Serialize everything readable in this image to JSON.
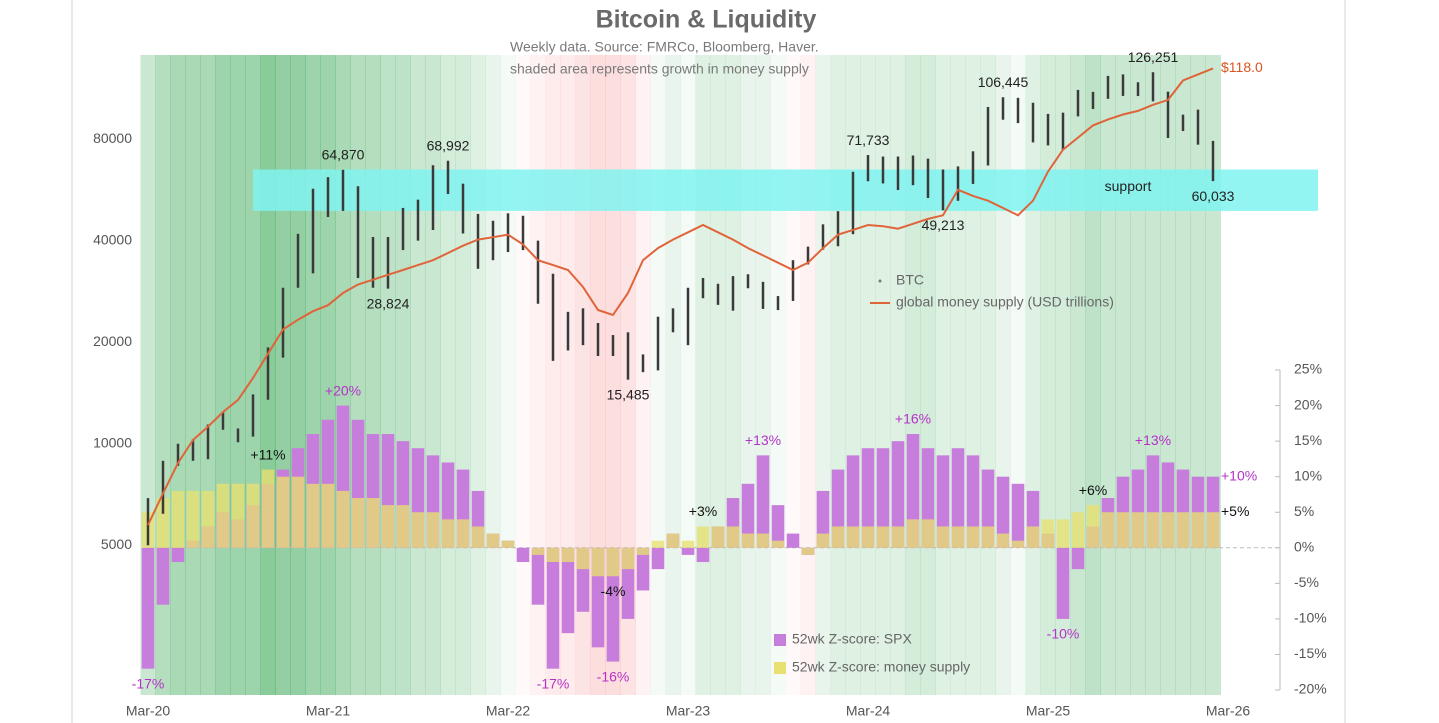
{
  "chart_data": {
    "type": "combo",
    "title": "Bitcoin & Liquidity",
    "subtitle": [
      "Weekly data.  Source: FMRCo, Bloomberg, Haver.",
      "shaded area represents growth in money supply"
    ],
    "x": [
      "2020-03",
      "2020-04",
      "2020-05",
      "2020-06",
      "2020-07",
      "2020-08",
      "2020-09",
      "2020-10",
      "2020-11",
      "2020-12",
      "2021-01",
      "2021-02",
      "2021-03",
      "2021-04",
      "2021-05",
      "2021-06",
      "2021-07",
      "2021-08",
      "2021-09",
      "2021-10",
      "2021-11",
      "2021-12",
      "2022-01",
      "2022-02",
      "2022-03",
      "2022-04",
      "2022-05",
      "2022-06",
      "2022-07",
      "2022-08",
      "2022-09",
      "2022-10",
      "2022-11",
      "2022-12",
      "2023-01",
      "2023-02",
      "2023-03",
      "2023-04",
      "2023-05",
      "2023-06",
      "2023-07",
      "2023-08",
      "2023-09",
      "2023-10",
      "2023-11",
      "2023-12",
      "2024-01",
      "2024-02",
      "2024-03",
      "2024-04",
      "2024-05",
      "2024-06",
      "2024-07",
      "2024-08",
      "2024-09",
      "2024-10",
      "2024-11",
      "2024-12",
      "2025-01",
      "2025-02",
      "2025-03",
      "2025-04",
      "2025-05",
      "2025-06",
      "2025-07",
      "2025-08",
      "2025-09",
      "2025-10",
      "2025-11",
      "2025-12",
      "2026-01",
      "2026-02"
    ],
    "xlim": [
      "2020-03",
      "2026-03"
    ],
    "xticks": [
      {
        "value": "2020-03",
        "label": "Mar-20"
      },
      {
        "value": "2021-03",
        "label": "Mar-21"
      },
      {
        "value": "2022-03",
        "label": "Mar-22"
      },
      {
        "value": "2023-03",
        "label": "Mar-23"
      },
      {
        "value": "2024-03",
        "label": "Mar-24"
      },
      {
        "value": "2025-03",
        "label": "Mar-25"
      },
      {
        "value": "2026-03",
        "label": "Mar-26"
      }
    ],
    "yscale": "log",
    "ylim": [
      1800,
      142000
    ],
    "yticks": [
      5000,
      10000,
      20000,
      40000,
      80000
    ],
    "y2lim": [
      -20.7,
      69.3
    ],
    "y2ticks": [
      {
        "value": -20,
        "label": "-20%"
      },
      {
        "value": -15,
        "label": "-15%"
      },
      {
        "value": -10,
        "label": "-10%"
      },
      {
        "value": -5,
        "label": "-5%"
      },
      {
        "value": 0,
        "label": "0%"
      },
      {
        "value": 5,
        "label": "5%"
      },
      {
        "value": 10,
        "label": "10%"
      },
      {
        "value": 15,
        "label": "15%"
      },
      {
        "value": 20,
        "label": "20%"
      },
      {
        "value": 25,
        "label": "25%"
      }
    ],
    "y3lim": [
      66.4,
      119.1
    ],
    "series": [
      {
        "name": "BTC",
        "type": "range",
        "color": "#3a3a3a",
        "low": [
          5000,
          6200,
          8600,
          8900,
          9000,
          11000,
          10100,
          10500,
          13500,
          18000,
          29000,
          32000,
          47000,
          49000,
          31000,
          29000,
          28824,
          37500,
          40000,
          43000,
          55000,
          42000,
          33000,
          35000,
          37000,
          37500,
          26000,
          17600,
          18900,
          19600,
          18200,
          18200,
          15485,
          16300,
          16500,
          21400,
          19600,
          27000,
          25800,
          24800,
          28900,
          25100,
          24900,
          26500,
          34000,
          37600,
          38500,
          41800,
          60000,
          59100,
          56500,
          58400,
          53500,
          49213,
          52500,
          58900,
          66800,
          91300,
          89200,
          78200,
          76600,
          74400,
          93400,
          98200,
          105300,
          107400,
          107300,
          103500,
          80600,
          84500,
          77000,
          60033
        ],
        "high": [
          6900,
          8900,
          10000,
          10300,
          11400,
          12400,
          11100,
          14000,
          19300,
          29000,
          41900,
          57000,
          61700,
          64870,
          58000,
          41000,
          41000,
          50000,
          52900,
          66900,
          68992,
          59000,
          48000,
          45800,
          48200,
          47400,
          40000,
          31900,
          24600,
          25200,
          22800,
          21000,
          21400,
          18400,
          23800,
          25200,
          29000,
          31000,
          29800,
          31400,
          31800,
          30200,
          27400,
          35000,
          38400,
          44700,
          48900,
          64000,
          71733,
          71000,
          71000,
          71500,
          70000,
          65000,
          66400,
          73600,
          99600,
          106445,
          106000,
          102500,
          95000,
          95800,
          111900,
          110400,
          123100,
          124400,
          117900,
          126251,
          110600,
          94500,
          97800,
          79000
        ]
      },
      {
        "name": "global money supply (USD trillions)",
        "type": "line",
        "axis": "y3",
        "color": "#e0643a",
        "values": [
          80.4,
          83,
          85.5,
          87.4,
          88.5,
          89.7,
          90.7,
          92.5,
          94.5,
          96.5,
          97.3,
          98,
          98.5,
          99.5,
          100.2,
          100.6,
          101,
          101.4,
          101.8,
          102.2,
          102.8,
          103.4,
          103.9,
          104.1,
          104.3,
          103.5,
          102.2,
          101.8,
          101.4,
          100,
          98.1,
          97.7,
          99.5,
          102.2,
          103.2,
          103.9,
          104.5,
          105.1,
          104.5,
          103.9,
          103.2,
          102.6,
          102,
          101.4,
          102,
          103.2,
          104.3,
          104.7,
          105.1,
          105,
          104.8,
          105.2,
          105.6,
          105.9,
          108,
          107.5,
          107.1,
          106.5,
          105.9,
          107.1,
          109.5,
          111.3,
          112.3,
          113.3,
          113.8,
          114.2,
          114.5,
          115,
          115.4,
          117,
          117.5,
          118
        ]
      },
      {
        "name": "52wk Z-score: SPX",
        "type": "bar",
        "axis": "y2",
        "color": "#c77ddb",
        "values": [
          -17,
          -8,
          -2,
          1,
          3,
          5,
          4,
          6,
          9,
          11,
          14,
          16,
          18,
          20,
          18,
          16,
          16,
          15,
          14,
          13,
          12,
          11,
          8,
          2,
          1,
          -2,
          -8,
          -17,
          -12,
          -9,
          -14,
          -16,
          -10,
          -6,
          -3,
          2,
          -1,
          -2,
          3,
          7,
          9,
          13,
          6,
          2,
          -1,
          8,
          11,
          13,
          14,
          14,
          15,
          16,
          14,
          13,
          14,
          13,
          11,
          10,
          9,
          8,
          2,
          -10,
          -3,
          3,
          7,
          10,
          11,
          13,
          12,
          11,
          10,
          10
        ]
      },
      {
        "name": "52wk Z-score: money supply",
        "type": "bar",
        "axis": "y2",
        "color": "#e8e070",
        "shade": true,
        "values": [
          5,
          7,
          8,
          8,
          8,
          9,
          9,
          9,
          11,
          10,
          10,
          9,
          9,
          8,
          7,
          7,
          6,
          6,
          5,
          5,
          4,
          4,
          3,
          2,
          1,
          0,
          -1,
          -2,
          -2,
          -3,
          -4,
          -4,
          -3,
          -1,
          1,
          2,
          1,
          3,
          3,
          3,
          2,
          2,
          1,
          0,
          -1,
          2,
          3,
          3,
          3,
          3,
          3,
          4,
          4,
          3,
          3,
          3,
          3,
          2,
          1,
          3,
          4,
          4,
          5,
          6,
          5,
          5,
          5,
          5,
          5,
          5,
          5,
          5
        ]
      }
    ],
    "bands": [
      {
        "label": "support",
        "x": [
          "2020-10",
          "2026-09"
        ],
        "from": 49000,
        "to": 65000,
        "color": "#80f3f0"
      }
    ],
    "annotations": [
      {
        "text": "64,870",
        "x": "2021-04",
        "y": 64870,
        "axis": "y",
        "position": "above",
        "color": "#222222"
      },
      {
        "text": "68,992",
        "x": "2021-11",
        "y": 68992,
        "axis": "y",
        "position": "above",
        "color": "#222222"
      },
      {
        "text": "28,824",
        "x": "2021-07",
        "y": 28824,
        "axis": "y",
        "position": "below",
        "color": "#222222"
      },
      {
        "text": "15,485",
        "x": "2022-11",
        "y": 15485,
        "axis": "y",
        "position": "below",
        "color": "#222222"
      },
      {
        "text": "71,733",
        "x": "2024-03",
        "y": 71733,
        "axis": "y",
        "position": "above",
        "color": "#222222"
      },
      {
        "text": "49,213",
        "x": "2024-08",
        "y": 49213,
        "axis": "y",
        "position": "below",
        "color": "#222222"
      },
      {
        "text": "106,445",
        "x": "2024-12",
        "y": 106445,
        "axis": "y",
        "position": "above",
        "color": "#222222"
      },
      {
        "text": "126,251",
        "x": "2025-10",
        "y": 126251,
        "axis": "y",
        "position": "above",
        "color": "#222222"
      },
      {
        "text": "60,033",
        "x": "2026-02",
        "y": 60033,
        "axis": "y",
        "position": "below",
        "color": "#222222"
      },
      {
        "text": "$118.0",
        "x": "2026-02",
        "y": 118,
        "axis": "y3",
        "position": "right",
        "color": "#d9541e"
      },
      {
        "text": "+20%",
        "x": "2021-04",
        "y": 20,
        "axis": "y2",
        "position": "above",
        "color": "#b533c8"
      },
      {
        "text": "-17%",
        "x": "2020-03",
        "y": -17,
        "axis": "y2",
        "position": "below",
        "color": "#b533c8"
      },
      {
        "text": "-17%",
        "x": "2022-06",
        "y": -17,
        "axis": "y2",
        "position": "below",
        "color": "#b533c8"
      },
      {
        "text": "-16%",
        "x": "2022-10",
        "y": -16,
        "axis": "y2",
        "position": "below",
        "color": "#b533c8"
      },
      {
        "text": "+13%",
        "x": "2023-08",
        "y": 13,
        "axis": "y2",
        "position": "above",
        "color": "#b533c8"
      },
      {
        "text": "+16%",
        "x": "2024-06",
        "y": 16,
        "axis": "y2",
        "position": "above",
        "color": "#b533c8"
      },
      {
        "text": "-10%",
        "x": "2025-04",
        "y": -10,
        "axis": "y2",
        "position": "below",
        "color": "#b533c8"
      },
      {
        "text": "+13%",
        "x": "2025-10",
        "y": 13,
        "axis": "y2",
        "position": "above",
        "color": "#b533c8"
      },
      {
        "text": "+10%",
        "x": "2026-02",
        "y": 10,
        "axis": "y2",
        "position": "right",
        "color": "#b533c8"
      },
      {
        "text": "+11%",
        "x": "2020-11",
        "y": 11,
        "axis": "y2",
        "position": "above",
        "color": "#111111"
      },
      {
        "text": "+3%",
        "x": "2023-04",
        "y": 3,
        "axis": "y2",
        "position": "above",
        "color": "#111111"
      },
      {
        "text": "-4%",
        "x": "2022-10",
        "y": -4,
        "axis": "y2",
        "position": "below",
        "color": "#111111"
      },
      {
        "text": "+6%",
        "x": "2025-06",
        "y": 6,
        "axis": "y2",
        "position": "above",
        "color": "#111111"
      },
      {
        "text": "+5%",
        "x": "2026-02",
        "y": 5,
        "axis": "y2",
        "position": "right",
        "color": "#111111"
      }
    ]
  }
}
